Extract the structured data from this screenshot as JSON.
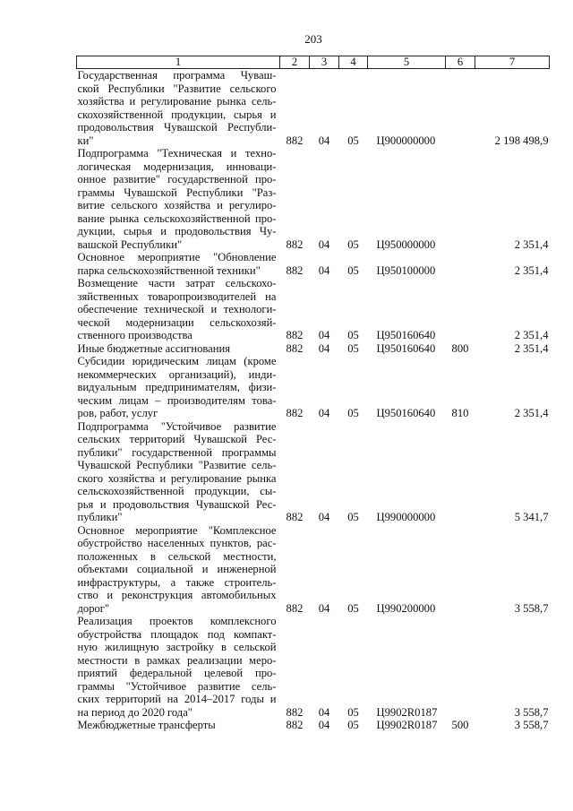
{
  "page_number": "203",
  "headers": [
    "1",
    "2",
    "3",
    "4",
    "5",
    "6",
    "7"
  ],
  "rows": [
    {
      "lines": [
        "Государственная программа Чуваш-",
        "ской Республики \"Развитие сельского",
        "хозяйства и регулирование рынка сель-",
        "скохозяйственной продукции, сырья и",
        "продовольствия Чувашской Республи-",
        "ки\""
      ],
      "c2": "882",
      "c3": "04",
      "c4": "05",
      "c5": "Ц900000000",
      "c6": "",
      "c7": "2 198 498,9"
    },
    {
      "lines": [
        "Подпрограмма \"Техническая и техно-",
        "логическая модернизация, инновaци-",
        "онное развитие\" государственной про-",
        "граммы Чувашской Республики \"Раз-",
        "витие сельского хозяйства и регулиро-",
        "вание рынка сельскохозяйственной про-",
        "дукции, сырья и продовольствия Чу-",
        "вашской Республики\""
      ],
      "c2": "882",
      "c3": "04",
      "c4": "05",
      "c5": "Ц950000000",
      "c6": "",
      "c7": "2 351,4"
    },
    {
      "lines": [
        "Основное мероприятие \"Обновление",
        "парка сельскохозяйственной техники\""
      ],
      "c2": "882",
      "c3": "04",
      "c4": "05",
      "c5": "Ц950100000",
      "c6": "",
      "c7": "2 351,4"
    },
    {
      "lines": [
        "Возмещение части затрат сельскохо-",
        "зяйственных товаропроизводителей на",
        "обеспечение технической и технологи-",
        "ческой модернизации сельскохозяй-",
        "ственного производства"
      ],
      "c2": "882",
      "c3": "04",
      "c4": "05",
      "c5": "Ц950160640",
      "c6": "",
      "c7": "2 351,4"
    },
    {
      "lines": [
        "Иные бюджетные ассигнования"
      ],
      "c2": "882",
      "c3": "04",
      "c4": "05",
      "c5": "Ц950160640",
      "c6": "800",
      "c7": "2 351,4"
    },
    {
      "lines": [
        "Субсидии юридическим лицам (кроме",
        "некоммерческих организаций), инди-",
        "видуальным предпринимателям, физи-",
        "ческим лицам – производителям това-",
        "ров, работ, услуг"
      ],
      "c2": "882",
      "c3": "04",
      "c4": "05",
      "c5": "Ц950160640",
      "c6": "810",
      "c7": "2 351,4"
    },
    {
      "lines": [
        "Подпрограмма \"Устойчивое развитие",
        "сельских территорий Чувашской Рес-",
        "публики\" государственной программы",
        "Чувашской Республики \"Развитие сель-",
        "ского хозяйства и регулирование рынка",
        "сельскохозяйственной продукции, сы-",
        "рья и продовольствия Чувашской Рес-",
        "публики\""
      ],
      "c2": "882",
      "c3": "04",
      "c4": "05",
      "c5": "Ц990000000",
      "c6": "",
      "c7": "5 341,7"
    },
    {
      "lines": [
        "Основное мероприятие \"Комплексное",
        "обустройство населенных пунктов, рас-",
        "положенных в сельской местности,",
        "объектами социальной и инженерной",
        "инфраструктуры, а также строитель-",
        "ство и реконструкция автомобильных",
        "дорог\""
      ],
      "c2": "882",
      "c3": "04",
      "c4": "05",
      "c5": "Ц990200000",
      "c6": "",
      "c7": "3 558,7"
    },
    {
      "lines": [
        "Реализация проектов комплексного",
        "обустройства площадок под компакт-",
        "ную жилищную застройку в сельской",
        "местности в рамках реализации меро-",
        "приятий федеральной целевой про-",
        "граммы \"Устойчивое развитие сель-",
        "ских территорий на 2014–2017 годы и",
        "на период до 2020 года\""
      ],
      "c2": "882",
      "c3": "04",
      "c4": "05",
      "c5": "Ц9902R0187",
      "c6": "",
      "c7": "3 558,7"
    },
    {
      "lines": [
        "Межбюджетные трансферты"
      ],
      "c2": "882",
      "c3": "04",
      "c4": "05",
      "c5": "Ц9902R0187",
      "c6": "500",
      "c7": "3 558,7"
    }
  ]
}
